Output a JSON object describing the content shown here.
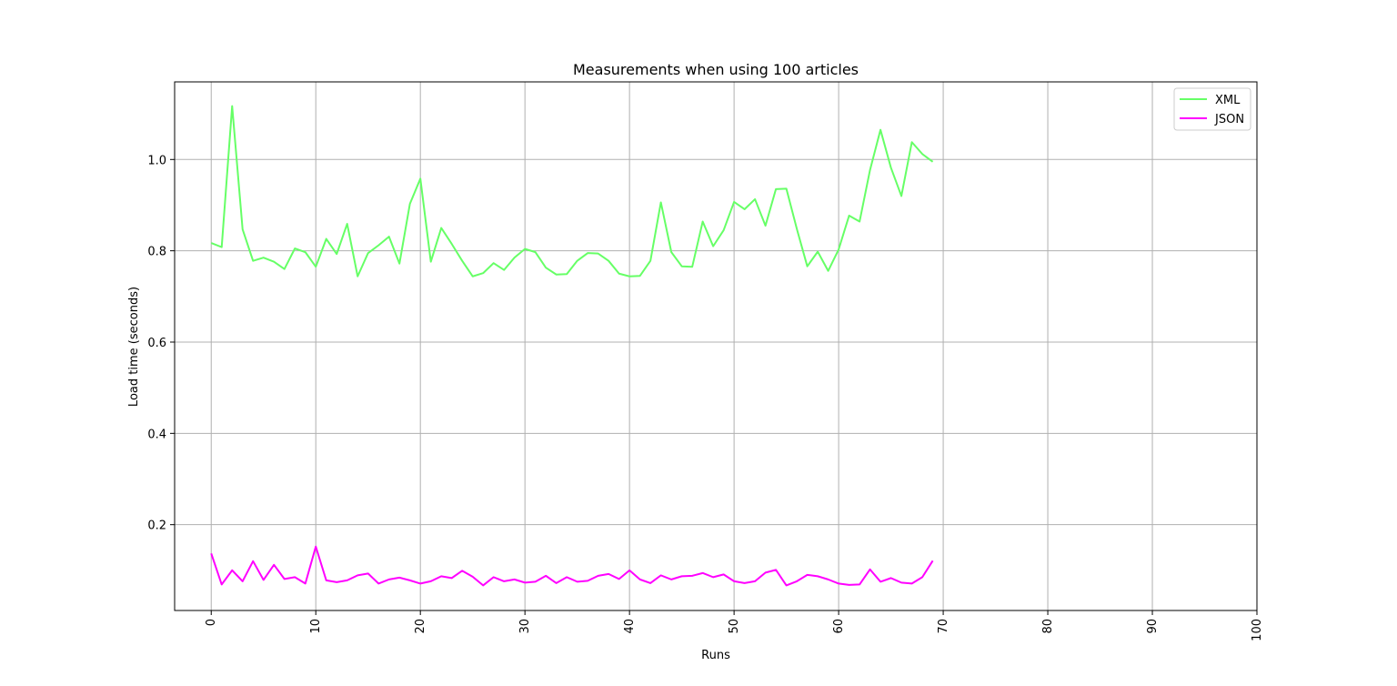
{
  "chart_data": {
    "type": "line",
    "title": "Measurements when using 100 articles",
    "xlabel": "Runs",
    "ylabel": "Load time (seconds)",
    "xlim": [
      -3.5,
      100
    ],
    "ylim": [
      0.012,
      1.17
    ],
    "xticks": [
      0,
      10,
      20,
      30,
      40,
      50,
      60,
      70,
      80,
      90,
      100
    ],
    "yticks": [
      0.2,
      0.4,
      0.6,
      0.8,
      1.0
    ],
    "ytick_labels": [
      "0.2",
      "0.4",
      "0.6",
      "0.8",
      "1.0"
    ],
    "xtick_rotation": -90,
    "grid": true,
    "legend_position": "top-right",
    "series": [
      {
        "name": "XML",
        "color": "#66ff66",
        "x": [
          0,
          1,
          2,
          3,
          4,
          5,
          6,
          7,
          8,
          9,
          10,
          11,
          12,
          13,
          14,
          15,
          16,
          17,
          18,
          19,
          20,
          21,
          22,
          23,
          24,
          25,
          26,
          27,
          28,
          29,
          30,
          31,
          32,
          33,
          34,
          35,
          36,
          37,
          38,
          39,
          40,
          41,
          42,
          43,
          44,
          45,
          46,
          47,
          48,
          49,
          50,
          51,
          52,
          53,
          54,
          55,
          56,
          57,
          58,
          59,
          60,
          61,
          62,
          63,
          64,
          65,
          66,
          67,
          68,
          69
        ],
        "values": [
          0.817,
          0.808,
          1.117,
          0.847,
          0.778,
          0.785,
          0.776,
          0.76,
          0.805,
          0.797,
          0.765,
          0.826,
          0.793,
          0.859,
          0.744,
          0.795,
          0.812,
          0.831,
          0.772,
          0.903,
          0.958,
          0.776,
          0.85,
          0.815,
          0.778,
          0.744,
          0.751,
          0.773,
          0.758,
          0.785,
          0.804,
          0.797,
          0.763,
          0.748,
          0.749,
          0.778,
          0.795,
          0.794,
          0.778,
          0.75,
          0.744,
          0.745,
          0.778,
          0.906,
          0.797,
          0.766,
          0.765,
          0.864,
          0.81,
          0.845,
          0.907,
          0.891,
          0.913,
          0.855,
          0.935,
          0.936,
          0.848,
          0.766,
          0.798,
          0.756,
          0.803,
          0.877,
          0.864,
          0.977,
          1.065,
          0.982,
          0.92,
          1.038,
          1.012,
          0.995
        ]
      },
      {
        "name": "JSON",
        "color": "#ff00ff",
        "x": [
          0,
          1,
          2,
          3,
          4,
          5,
          6,
          7,
          8,
          9,
          10,
          11,
          12,
          13,
          14,
          15,
          16,
          17,
          18,
          19,
          20,
          21,
          22,
          23,
          24,
          25,
          26,
          27,
          28,
          29,
          30,
          31,
          32,
          33,
          34,
          35,
          36,
          37,
          38,
          39,
          40,
          41,
          42,
          43,
          44,
          45,
          46,
          47,
          48,
          49,
          50,
          51,
          52,
          53,
          54,
          55,
          56,
          57,
          58,
          59,
          60,
          61,
          62,
          63,
          64,
          65,
          66,
          67,
          68,
          69
        ],
        "values": [
          0.137,
          0.069,
          0.1,
          0.076,
          0.12,
          0.079,
          0.112,
          0.081,
          0.085,
          0.071,
          0.152,
          0.078,
          0.074,
          0.078,
          0.089,
          0.093,
          0.071,
          0.08,
          0.084,
          0.078,
          0.071,
          0.076,
          0.087,
          0.083,
          0.099,
          0.086,
          0.067,
          0.085,
          0.076,
          0.08,
          0.073,
          0.075,
          0.088,
          0.072,
          0.085,
          0.075,
          0.077,
          0.088,
          0.092,
          0.081,
          0.1,
          0.08,
          0.072,
          0.089,
          0.08,
          0.087,
          0.088,
          0.094,
          0.085,
          0.091,
          0.076,
          0.072,
          0.076,
          0.095,
          0.101,
          0.067,
          0.076,
          0.09,
          0.087,
          0.08,
          0.071,
          0.068,
          0.069,
          0.102,
          0.075,
          0.083,
          0.073,
          0.071,
          0.085,
          0.121
        ]
      }
    ]
  }
}
